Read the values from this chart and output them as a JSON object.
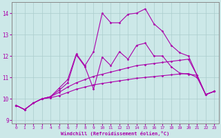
{
  "xlabel": "Windchill (Refroidissement éolien,°C)",
  "background_color": "#cce8e8",
  "line_color": "#aa00aa",
  "grid_color": "#aacccc",
  "xlim": [
    -0.5,
    23.5
  ],
  "ylim": [
    8.85,
    14.5
  ],
  "yticks": [
    9,
    10,
    11,
    12,
    13,
    14
  ],
  "xticks": [
    0,
    1,
    2,
    3,
    4,
    5,
    6,
    7,
    8,
    9,
    10,
    11,
    12,
    13,
    14,
    15,
    16,
    17,
    18,
    19,
    20,
    21,
    22,
    23
  ],
  "series": [
    {
      "x": [
        0,
        1,
        2,
        3,
        4,
        5,
        6,
        7,
        8,
        9,
        10,
        11,
        12,
        13,
        14,
        15,
        16,
        17,
        18,
        19,
        20,
        21,
        22,
        23
      ],
      "y": [
        9.7,
        9.5,
        9.8,
        10.0,
        10.1,
        10.5,
        10.9,
        12.1,
        11.55,
        12.2,
        14.0,
        13.55,
        13.55,
        13.95,
        14.0,
        14.2,
        13.5,
        13.15,
        12.5,
        12.15,
        12.0,
        11.1,
        10.2,
        10.35
      ]
    },
    {
      "x": [
        0,
        1,
        2,
        3,
        4,
        5,
        6,
        7,
        8,
        9,
        10,
        11,
        12,
        13,
        14,
        15,
        16,
        17,
        18,
        19,
        20,
        21,
        22,
        23
      ],
      "y": [
        9.7,
        9.5,
        9.8,
        10.0,
        10.1,
        10.4,
        10.75,
        12.05,
        11.5,
        10.45,
        11.95,
        11.55,
        12.2,
        11.85,
        12.5,
        12.6,
        12.0,
        12.0,
        11.5,
        11.2,
        11.15,
        11.1,
        10.2,
        10.35
      ]
    },
    {
      "x": [
        0,
        1,
        2,
        3,
        4,
        5,
        6,
        7,
        8,
        9,
        10,
        11,
        12,
        13,
        14,
        15,
        16,
        17,
        18,
        19,
        20,
        21,
        22,
        23
      ],
      "y": [
        9.7,
        9.5,
        9.8,
        10.0,
        10.1,
        10.3,
        10.55,
        10.75,
        10.9,
        11.05,
        11.15,
        11.25,
        11.35,
        11.45,
        11.55,
        11.6,
        11.65,
        11.7,
        11.75,
        11.8,
        11.85,
        11.1,
        10.2,
        10.35
      ]
    },
    {
      "x": [
        0,
        1,
        2,
        3,
        4,
        5,
        6,
        7,
        8,
        9,
        10,
        11,
        12,
        13,
        14,
        15,
        16,
        17,
        18,
        19,
        20,
        21,
        22,
        23
      ],
      "y": [
        9.7,
        9.5,
        9.8,
        10.0,
        10.05,
        10.15,
        10.3,
        10.45,
        10.55,
        10.65,
        10.72,
        10.78,
        10.84,
        10.9,
        10.96,
        11.0,
        11.04,
        11.08,
        11.12,
        11.16,
        11.18,
        11.0,
        10.2,
        10.35
      ]
    }
  ]
}
